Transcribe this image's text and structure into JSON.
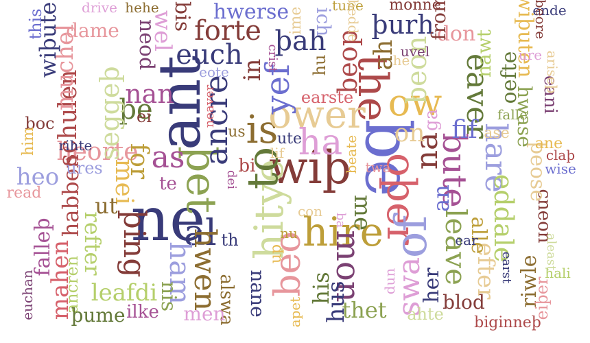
{
  "words": [
    {
      "text": "be",
      "color": "#6b6ecf",
      "rot": "r"
    },
    {
      "text": "ne",
      "color": "#393b79",
      "rot": "h"
    },
    {
      "text": "ant",
      "color": "#393b79",
      "rot": "v"
    },
    {
      "text": "wiþ",
      "color": "#843c39",
      "rot": "h"
    },
    {
      "text": "hitye",
      "color": "#cedb9c",
      "rot": "v"
    },
    {
      "text": "is",
      "color": "#8c6d31",
      "rot": "h"
    },
    {
      "text": "þet",
      "color": "#8ca252",
      "rot": "r"
    },
    {
      "text": "oþer",
      "color": "#d6616b",
      "rot": "r"
    },
    {
      "text": "to",
      "color": "#637939",
      "rot": "v"
    },
    {
      "text": "the",
      "color": "#ad494a",
      "rot": "r"
    },
    {
      "text": "ower",
      "color": "#e7cb94",
      "rot": "h"
    },
    {
      "text": "hire",
      "color": "#bd9e39",
      "rot": "h"
    },
    {
      "text": "of",
      "color": "#9c9ede",
      "rot": "v"
    },
    {
      "text": "ow",
      "color": "#e7ba52",
      "rot": "h"
    },
    {
      "text": "ha",
      "color": "#de9ed6",
      "rot": "h"
    },
    {
      "text": "beo",
      "color": "#e7969c",
      "rot": "v"
    },
    {
      "text": "ancre",
      "color": "#393b79",
      "rot": "v"
    },
    {
      "text": "yef",
      "color": "#6b6ecf",
      "rot": "v"
    },
    {
      "text": "al",
      "color": "#393b79",
      "rot": "h"
    },
    {
      "text": "bute",
      "color": "#a55194",
      "rot": "r"
    },
    {
      "text": "mon",
      "color": "#7b4173",
      "rot": "r"
    },
    {
      "text": "hare",
      "color": "#9c9ede",
      "rot": "r"
    },
    {
      "text": "na",
      "color": "#843c39",
      "rot": "v"
    },
    {
      "text": "leave",
      "color": "#8ca252",
      "rot": "r"
    },
    {
      "text": "eaver",
      "color": "#637939",
      "rot": "r"
    },
    {
      "text": "hwen",
      "color": "#8c6d31",
      "rot": "r"
    },
    {
      "text": "þing",
      "color": "#843c39",
      "rot": "r"
    },
    {
      "text": "as",
      "color": "#a55194",
      "rot": "h"
    },
    {
      "text": "euch",
      "color": "#393b79",
      "rot": "h"
    },
    {
      "text": "swa",
      "color": "#de9ed6",
      "rot": "v"
    },
    {
      "text": "eddale",
      "color": "#b5cf6b",
      "rot": "r"
    },
    {
      "text": "beon",
      "color": "#cedb9c",
      "rot": "v"
    },
    {
      "text": "forte",
      "color": "#843c39",
      "rot": "h"
    },
    {
      "text": "þah",
      "color": "#393b79",
      "rot": "h"
    },
    {
      "text": "þurh",
      "color": "#393b79",
      "rot": "h"
    },
    {
      "text": "beop",
      "color": "#ad494a",
      "rot": "v"
    },
    {
      "text": "ham",
      "color": "#9c9ede",
      "rot": "r"
    },
    {
      "text": "ah",
      "color": "#8c6d31",
      "rot": "v"
    },
    {
      "text": "ant2",
      "text_alias": "",
      "color": "#000000",
      "rot": "h",
      "skip": true
    },
    {
      "text": "on",
      "color": "#e7cb94",
      "rot": "h"
    },
    {
      "text": "fif",
      "color": "#6b6ecf",
      "rot": "h"
    },
    {
      "text": "þe",
      "color": "#637939",
      "rot": "h"
    },
    {
      "text": "nan",
      "color": "#a55194",
      "rot": "h"
    },
    {
      "text": "in",
      "color": "#843c39",
      "rot": "v"
    },
    {
      "text": "heorte",
      "color": "#e7969c",
      "rot": "h"
    },
    {
      "text": "seggeþ",
      "color": "#cedb9c",
      "rot": "v"
    },
    {
      "text": "schulen",
      "color": "#ad494a",
      "rot": "v"
    },
    {
      "text": "muchel",
      "color": "#e7969c",
      "rot": "v"
    },
    {
      "text": "wiþute",
      "color": "#393b79",
      "rot": "v"
    },
    {
      "text": "leafdi",
      "color": "#b5cf6b",
      "rot": "h"
    },
    {
      "text": "his",
      "color": "#637939",
      "rot": "v"
    },
    {
      "text": "thet",
      "color": "#8ca252",
      "rot": "h"
    },
    {
      "text": "hus",
      "color": "#393b79",
      "rot": "v"
    },
    {
      "text": "for",
      "color": "#bd9e39",
      "rot": "r"
    },
    {
      "text": "mei",
      "color": "#e7ba52",
      "rot": "r"
    },
    {
      "text": "me",
      "color": "#637939",
      "rot": "r"
    },
    {
      "text": "an",
      "color": "#6b6ecf",
      "rot": "v"
    },
    {
      "text": "ut",
      "color": "#8c6d31",
      "rot": "h"
    },
    {
      "text": "habben",
      "color": "#ad494a",
      "rot": "v"
    },
    {
      "text": "heo",
      "color": "#9c9ede",
      "rot": "h"
    },
    {
      "text": "refter",
      "color": "#b5cf6b",
      "rot": "r"
    },
    {
      "text": "mahen",
      "color": "#d6616b",
      "rot": "v"
    },
    {
      "text": "falleþ",
      "color": "#a55194",
      "rot": "v"
    },
    {
      "text": "ancren",
      "color": "#b5cf6b",
      "rot": "v"
    },
    {
      "text": "þume",
      "color": "#637939",
      "rot": "h"
    },
    {
      "text": "ilke",
      "color": "#a55194",
      "rot": "h"
    },
    {
      "text": "nis",
      "color": "#8ca252",
      "rot": "r"
    },
    {
      "text": "alswa",
      "color": "#8c6d31",
      "rot": "r"
    },
    {
      "text": "men",
      "color": "#de9ed6",
      "rot": "h"
    },
    {
      "text": "nane",
      "color": "#393b79",
      "rot": "r"
    },
    {
      "text": "efter",
      "color": "#e7cb94",
      "rot": "r"
    },
    {
      "text": "alle",
      "color": "#bd9e39",
      "rot": "r"
    },
    {
      "text": "her",
      "color": "#393b79",
      "rot": "v"
    },
    {
      "text": "blod",
      "color": "#843c39",
      "rot": "h"
    },
    {
      "text": "riwle",
      "color": "#8c6d31",
      "rot": "v"
    },
    {
      "text": "eiþer",
      "color": "#e7969c",
      "rot": "v"
    },
    {
      "text": "ahte",
      "color": "#cedb9c",
      "rot": "h"
    },
    {
      "text": "biginneþ",
      "color": "#ad494a",
      "rot": "h"
    },
    {
      "text": "cneon",
      "color": "#843c39",
      "rot": "r"
    },
    {
      "text": "þeose",
      "color": "#e7cb94",
      "rot": "r"
    },
    {
      "text": "hwase",
      "color": "#8ca252",
      "rot": "r"
    },
    {
      "text": "eani",
      "color": "#7b4173",
      "rot": "r"
    },
    {
      "text": "oefte",
      "color": "#637939",
      "rot": "v"
    },
    {
      "text": "nawt",
      "color": "#b5cf6b",
      "rot": "v"
    },
    {
      "text": "wiþuten",
      "color": "#e7ba52",
      "rot": "r"
    },
    {
      "text": "don",
      "color": "#e7969c",
      "rot": "h"
    },
    {
      "text": "from",
      "color": "#843c39",
      "rot": "v"
    },
    {
      "text": "monne",
      "color": "#843c39",
      "rot": "h"
    },
    {
      "text": "tune",
      "color": "#bd9e39",
      "rot": "h"
    },
    {
      "text": "ich",
      "color": "#9c9ede",
      "rot": "r"
    },
    {
      "text": "hwerse",
      "color": "#6b6ecf",
      "rot": "h"
    },
    {
      "text": "bis",
      "color": "#843c39",
      "rot": "r"
    },
    {
      "text": "wel",
      "color": "#de9ed6",
      "rot": "r"
    },
    {
      "text": "neod",
      "color": "#7b4173",
      "rot": "r"
    },
    {
      "text": "dame",
      "color": "#e7969c",
      "rot": "h"
    },
    {
      "text": "drive",
      "color": "#de9ed6",
      "rot": "h"
    },
    {
      "text": "hehe",
      "color": "#8c6d31",
      "rot": "h"
    },
    {
      "text": "this",
      "color": "#6b6ecf",
      "rot": "v"
    },
    {
      "text": "boc",
      "color": "#843c39",
      "rot": "h"
    },
    {
      "text": "him",
      "color": "#e7ba52",
      "rot": "v"
    },
    {
      "text": "rihte",
      "color": "#393b79",
      "rot": "h"
    },
    {
      "text": "ures",
      "color": "#9c9ede",
      "rot": "h"
    },
    {
      "text": "read",
      "color": "#e7969c",
      "rot": "h"
    },
    {
      "text": "euchan",
      "color": "#7b4173",
      "rot": "v"
    },
    {
      "text": "ei",
      "color": "#843c39",
      "rot": "h"
    },
    {
      "text": "te",
      "color": "#a55194",
      "rot": "h"
    },
    {
      "text": "th",
      "color": "#393b79",
      "rot": "h"
    },
    {
      "text": "us",
      "color": "#8c6d31",
      "rot": "h"
    },
    {
      "text": "bi",
      "color": "#ad494a",
      "rot": "h"
    },
    {
      "text": "dei",
      "color": "#a55194",
      "rot": "r"
    },
    {
      "text": "up",
      "color": "#e7ba52",
      "rot": "v"
    },
    {
      "text": "nu",
      "color": "#bd9e39",
      "rot": "h"
    },
    {
      "text": "con",
      "color": "#e7cb94",
      "rot": "h"
    },
    {
      "text": "ute",
      "color": "#393b79",
      "rot": "h"
    },
    {
      "text": "lif",
      "color": "#e7cb94",
      "rot": "h"
    },
    {
      "text": "ba",
      "color": "#de9ed6",
      "rot": "r"
    },
    {
      "text": "twa",
      "color": "#e7969c",
      "rot": "h"
    },
    {
      "text": "beate",
      "color": "#e7ba52",
      "rot": "v"
    },
    {
      "text": "earste",
      "color": "#d6616b",
      "rot": "h"
    },
    {
      "text": "hu",
      "color": "#8c6d31",
      "rot": "v"
    },
    {
      "text": "crist",
      "color": "#a55194",
      "rot": "r"
    },
    {
      "text": "eote",
      "color": "#9c9ede",
      "rot": "h"
    },
    {
      "text": "neaver",
      "color": "#d6616b",
      "rot": "v"
    },
    {
      "text": "ime",
      "color": "#e7cb94",
      "rot": "v"
    },
    {
      "text": "bedde",
      "color": "#e7cb94",
      "rot": "r"
    },
    {
      "text": "he",
      "color": "#e7cb94",
      "rot": "h"
    },
    {
      "text": "uvel",
      "color": "#7b4173",
      "rot": "h"
    },
    {
      "text": "ga",
      "color": "#de9ed6",
      "rot": "v"
    },
    {
      "text": "ase",
      "color": "#e7cb94",
      "rot": "h"
    },
    {
      "text": "falle",
      "color": "#8ca252",
      "rot": "h"
    },
    {
      "text": "ure",
      "color": "#de9ed6",
      "rot": "h"
    },
    {
      "text": "ariseþ",
      "color": "#e7cb94",
      "rot": "r"
    },
    {
      "text": "ane",
      "color": "#e7ba52",
      "rot": "h"
    },
    {
      "text": "claþ",
      "color": "#ad494a",
      "rot": "h"
    },
    {
      "text": "wise",
      "color": "#6b6ecf",
      "rot": "h"
    },
    {
      "text": "ende",
      "color": "#393b79",
      "rot": "h"
    },
    {
      "text": "beore",
      "color": "#843c39",
      "rot": "r"
    },
    {
      "text": "ear",
      "color": "#393b79",
      "rot": "h"
    },
    {
      "text": "earst",
      "color": "#393b79",
      "rot": "r"
    },
    {
      "text": "aleast",
      "color": "#cedb9c",
      "rot": "r"
    },
    {
      "text": "hali",
      "color": "#b5cf6b",
      "rot": "h"
    },
    {
      "text": "dun",
      "color": "#de9ed6",
      "rot": "v"
    },
    {
      "text": "apet",
      "color": "#e7ba52",
      "rot": "v"
    }
  ]
}
